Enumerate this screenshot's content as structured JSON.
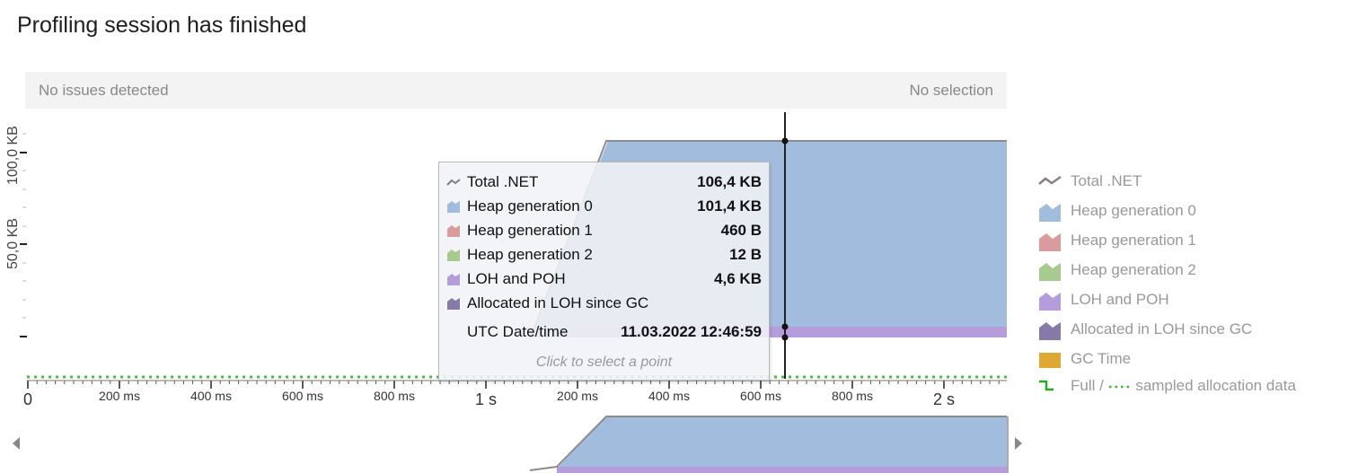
{
  "header": {
    "title": "Profiling session has finished"
  },
  "status_bar": {
    "left_text": "No issues detected",
    "right_text": "No selection"
  },
  "y_axis": {
    "labels": [
      "100,0 KB",
      "50,0 KB"
    ]
  },
  "x_axis": {
    "labels": [
      {
        "text": "0",
        "big": true
      },
      {
        "text": "200 ms",
        "big": false
      },
      {
        "text": "400 ms",
        "big": false
      },
      {
        "text": "600 ms",
        "big": false
      },
      {
        "text": "800 ms",
        "big": false
      },
      {
        "text": "1 s",
        "big": true
      },
      {
        "text": "200 ms",
        "big": false
      },
      {
        "text": "400 ms",
        "big": false
      },
      {
        "text": "600 ms",
        "big": false
      },
      {
        "text": "800 ms",
        "big": false
      },
      {
        "text": "2 s",
        "big": true
      }
    ]
  },
  "tooltip": {
    "rows": [
      {
        "name": "Total .NET",
        "value": "106,4 KB",
        "icon": "line-icon",
        "color": "#7f7f7f"
      },
      {
        "name": "Heap generation 0",
        "value": "101,4 KB",
        "icon": "area-icon",
        "color": "#a2bcdd"
      },
      {
        "name": "Heap generation 1",
        "value": "460 B",
        "icon": "area-icon",
        "color": "#d99b9b"
      },
      {
        "name": "Heap generation 2",
        "value": "12 B",
        "icon": "area-icon",
        "color": "#a7cb8f"
      },
      {
        "name": "LOH and POH",
        "value": "4,6 KB",
        "icon": "area-icon",
        "color": "#b59ddb"
      },
      {
        "name": "Allocated in LOH since GC",
        "value": "",
        "icon": "area-icon",
        "color": "#857aa8"
      }
    ],
    "date_label": "UTC Date/time",
    "date_value": "11.03.2022 12:46:59",
    "hint": "Click to select a point"
  },
  "legend": {
    "items": [
      {
        "name": "Total .NET",
        "icon": "line-icon",
        "color": "#8a7e84"
      },
      {
        "name": "Heap generation 0",
        "icon": "area-icon",
        "color": "#a2bcdd"
      },
      {
        "name": "Heap generation 1",
        "icon": "area-icon",
        "color": "#d99b9b"
      },
      {
        "name": "Heap generation 2",
        "icon": "area-icon",
        "color": "#a7cb8f"
      },
      {
        "name": "LOH and POH",
        "icon": "area-icon",
        "color": "#b59ddb"
      },
      {
        "name": "Allocated in LOH since GC",
        "icon": "area-icon",
        "color": "#857aa8"
      },
      {
        "name": "GC Time",
        "icon": "block-icon",
        "color": "#dfa833"
      }
    ],
    "allocation": {
      "full": "Full /",
      "sampled": "sampled allocation data",
      "full_color": "#22aa22",
      "sampled_color": "#33bb33"
    }
  },
  "colors": {
    "gen0": "#a2bcdd",
    "loh": "#b59ddb",
    "total_line": "#8c8c8c",
    "cursor": "#222222",
    "sampled_dots": "#44c044"
  }
}
